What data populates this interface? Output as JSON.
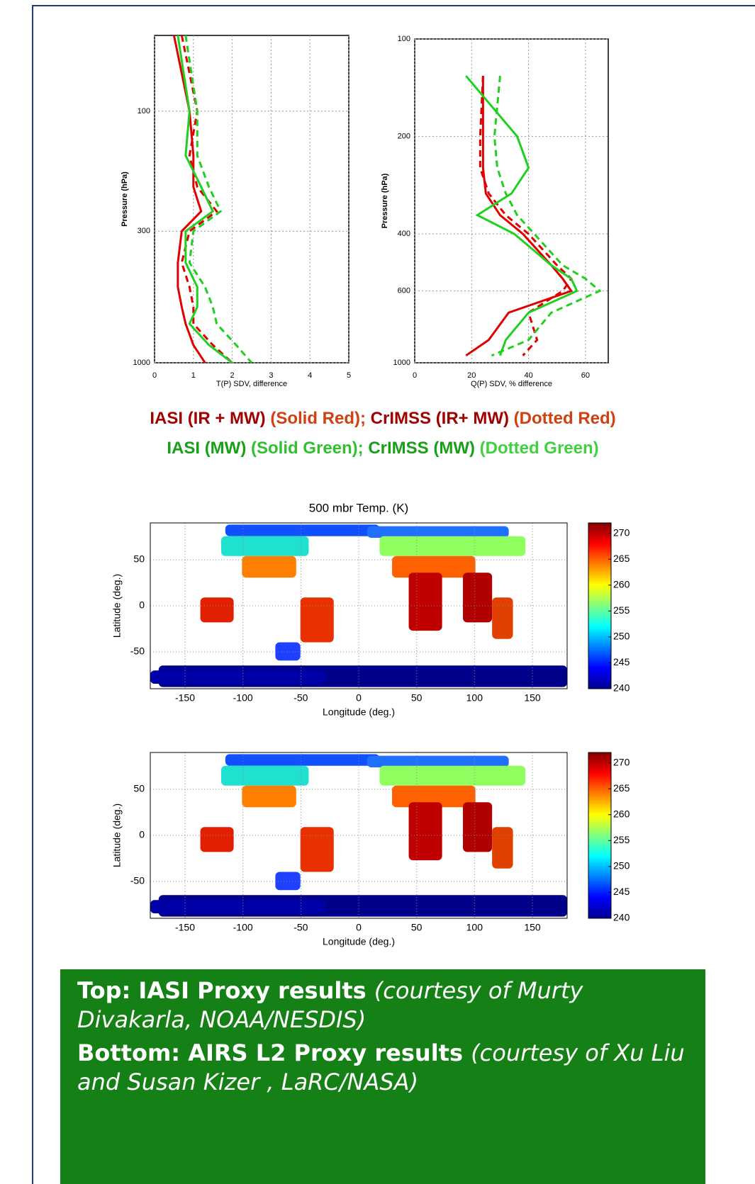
{
  "chart_data": [
    {
      "type": "profile",
      "xlabel": "T(P) SDV, difference",
      "ylabel": "Pressure (hPa)",
      "levels": [
        50,
        100,
        150,
        200,
        250,
        300,
        400,
        500,
        600,
        700,
        850,
        1000
      ],
      "xlim": [
        0,
        5
      ],
      "xticks": [
        0,
        1,
        2,
        3,
        4,
        5
      ],
      "ylim": [
        50,
        1000
      ],
      "yticks": [
        100,
        300,
        1000
      ],
      "log_y": true,
      "y_reversed": true,
      "grid": true,
      "series": [
        {
          "color": "#e00000",
          "dash": false,
          "values": [
            0.5,
            0.9,
            1.0,
            1.0,
            1.2,
            0.7,
            0.6,
            0.6,
            0.7,
            0.8,
            1.0,
            1.3
          ]
        },
        {
          "color": "#e00000",
          "dash": true,
          "values": [
            0.7,
            1.1,
            0.9,
            1.1,
            1.6,
            0.9,
            0.7,
            0.9,
            1.0,
            1.0,
            1.5,
            2.0
          ]
        },
        {
          "color": "#20d020",
          "dash": false,
          "values": [
            0.6,
            0.9,
            0.8,
            1.2,
            1.5,
            0.8,
            0.8,
            1.1,
            1.1,
            0.9,
            1.4,
            2.0
          ]
        },
        {
          "color": "#20d020",
          "dash": true,
          "values": [
            0.8,
            1.1,
            1.1,
            1.4,
            1.7,
            1.0,
            0.9,
            1.3,
            1.5,
            1.6,
            2.1,
            2.5
          ]
        }
      ]
    },
    {
      "type": "profile",
      "xlabel": "Q(P) SDV, % difference",
      "ylabel": "Pressure (hPa)",
      "levels": [
        130,
        200,
        250,
        300,
        350,
        400,
        500,
        550,
        600,
        700,
        850,
        950
      ],
      "xlim": [
        0,
        68
      ],
      "xticks": [
        0,
        20,
        40,
        60
      ],
      "ylim": [
        100,
        1000
      ],
      "yticks": [
        100,
        200,
        400,
        600,
        1000
      ],
      "log_y": true,
      "y_reversed": true,
      "grid": true,
      "series": [
        {
          "color": "#e00000",
          "dash": false,
          "values": [
            24,
            24,
            24,
            25,
            30,
            38,
            48,
            52,
            55,
            33,
            26,
            18
          ]
        },
        {
          "color": "#e00000",
          "dash": true,
          "values": [
            24,
            23,
            23,
            26,
            32,
            40,
            50,
            55,
            52,
            40,
            43,
            38
          ]
        },
        {
          "color": "#20d020",
          "dash": false,
          "values": [
            18,
            36,
            40,
            34,
            22,
            35,
            48,
            55,
            57,
            40,
            32,
            30
          ]
        },
        {
          "color": "#20d020",
          "dash": true,
          "values": [
            30,
            28,
            29,
            32,
            36,
            42,
            52,
            60,
            65,
            48,
            40,
            27
          ]
        }
      ]
    },
    {
      "type": "map",
      "title": "500 mbr Temp. (K)",
      "xlabel": "Longitude (deg.)",
      "ylabel": "Latitude (deg.)",
      "xlim": [
        -180,
        180
      ],
      "xticks": [
        -150,
        -100,
        -50,
        0,
        50,
        100,
        150
      ],
      "ylim": [
        -90,
        90
      ],
      "yticks": [
        -50,
        0,
        50
      ],
      "grid": true,
      "colormap": "jet",
      "colorbar": {
        "lim": [
          240,
          272
        ],
        "ticks": [
          240,
          245,
          250,
          255,
          260,
          265,
          270
        ]
      }
    },
    {
      "type": "map",
      "xlabel": "Longitude (deg.)",
      "ylabel": "Latitude (deg.)",
      "xlim": [
        -180,
        180
      ],
      "xticks": [
        -150,
        -100,
        -50,
        0,
        50,
        100,
        150
      ],
      "ylim": [
        -90,
        90
      ],
      "yticks": [
        -50,
        0,
        50
      ],
      "grid": true,
      "colormap": "jet",
      "colorbar": {
        "lim": [
          240,
          272
        ],
        "ticks": [
          240,
          245,
          250,
          255,
          260,
          265,
          270
        ]
      }
    }
  ],
  "caption": {
    "lines": [
      [
        {
          "text": "IASI  (IR + MW) ",
          "color": "#a00000"
        },
        {
          "text": "(Solid Red); ",
          "color": "#d04010"
        },
        {
          "text": "CrIMSS (IR+ MW) ",
          "color": "#a00000"
        },
        {
          "text": "(Dotted Red)",
          "color": "#d04010"
        }
      ],
      [
        {
          "text": "IASI (MW) ",
          "color": "#18a018"
        },
        {
          "text": "(Solid Green); ",
          "color": "#30c030"
        },
        {
          "text": "CrIMSS (MW) ",
          "color": "#18a018"
        },
        {
          "text": "(Dotted Green)",
          "color": "#40d040"
        }
      ]
    ]
  },
  "footer": {
    "lines": [
      [
        {
          "text": "Top: IASI Proxy results ",
          "style": "bold"
        },
        {
          "text": "(courtesy of Murty Divakarla, NOAA/NESDIS)",
          "style": "italic"
        }
      ],
      [
        {
          "text": "Bottom: AIRS L2 Proxy results ",
          "style": "bold"
        },
        {
          "text": "(courtesy of Xu Liu and Susan Kizer ,  LaRC/NASA)",
          "style": "italic"
        }
      ]
    ]
  }
}
